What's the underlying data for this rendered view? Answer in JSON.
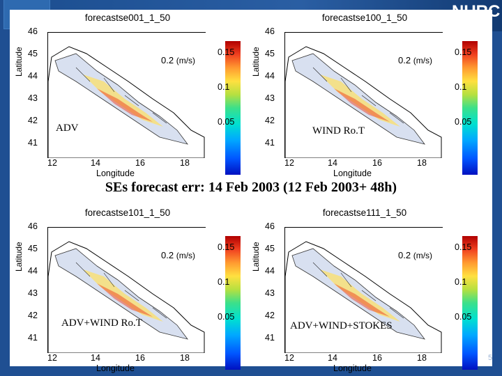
{
  "caption": "SEs forecast err: 14 Feb 2003 (12 Feb 2003+ 48h)",
  "logo_text": "NURC",
  "page_number": "5",
  "common": {
    "ylabel": "Latitude",
    "xlabel": "Longitude",
    "scale_value": "0.2",
    "scale_unit": "(m/s)",
    "yticks": [
      "46",
      "45",
      "44",
      "43",
      "42",
      "41"
    ],
    "xticks": [
      "12",
      "14",
      "16",
      "18"
    ],
    "cbar_ticks": [
      "0.15",
      "0.1",
      "0.05"
    ]
  },
  "panels": [
    {
      "title": "forecastse001_1_50",
      "label": "ADV"
    },
    {
      "title": "forecastse100_1_50",
      "label": "WIND Ro.T"
    },
    {
      "title": "forecastse101_1_50",
      "label": "ADV+WIND Ro.T"
    },
    {
      "title": "forecastse111_1_50",
      "label": "ADV+WIND+STOKES"
    }
  ],
  "colors": {
    "background": "#1f4f92",
    "panel": "#ffffff"
  }
}
